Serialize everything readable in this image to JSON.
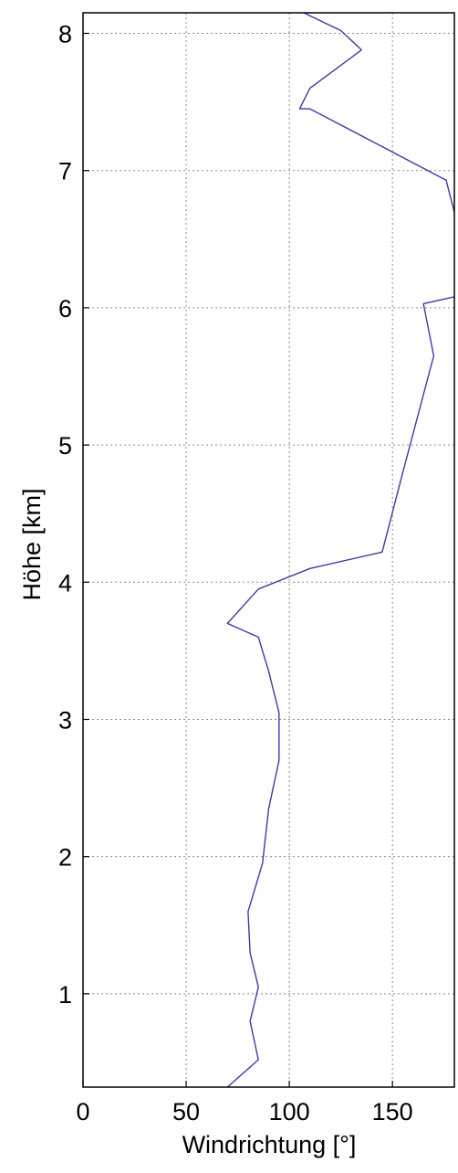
{
  "chart_data": {
    "type": "line",
    "title": "",
    "xlabel": "Windrichtung [°]",
    "ylabel": "Höhe [km]",
    "xlim": [
      0,
      180
    ],
    "ylim": [
      0.32,
      8.15
    ],
    "xticks": [
      0,
      50,
      100,
      150
    ],
    "yticks": [
      1,
      2,
      3,
      4,
      5,
      6,
      7,
      8
    ],
    "x_tick_labels": [
      "0",
      "50",
      "100",
      "150"
    ],
    "y_tick_labels": [
      "1",
      "2",
      "3",
      "4",
      "5",
      "6",
      "7",
      "8"
    ],
    "grid": true,
    "grid_style": "dotted",
    "line_color": "#3c3ca0",
    "series": [
      {
        "x": [
          70,
          85,
          81,
          85,
          81,
          80,
          87,
          90,
          95,
          95,
          90,
          85,
          70,
          85,
          110,
          145,
          155,
          170,
          165,
          180,
          185,
          176,
          110,
          105,
          110,
          135,
          125,
          107
        ],
        "y": [
          0.32,
          0.52,
          0.8,
          1.05,
          1.3,
          1.6,
          1.95,
          2.35,
          2.7,
          3.05,
          3.35,
          3.6,
          3.7,
          3.95,
          4.1,
          4.22,
          4.8,
          5.65,
          6.03,
          6.08,
          6.4,
          6.93,
          7.45,
          7.45,
          7.6,
          7.88,
          8.02,
          8.15
        ]
      }
    ]
  }
}
